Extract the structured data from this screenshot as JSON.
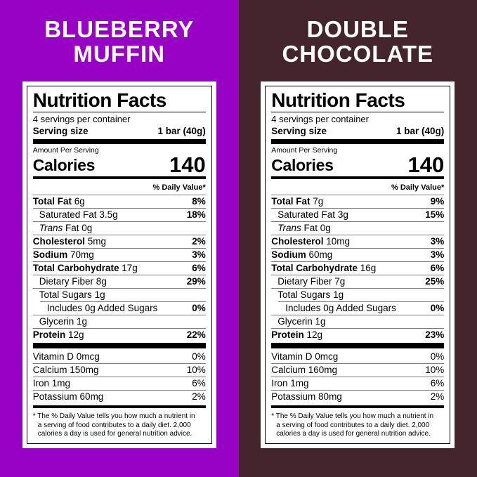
{
  "panels": [
    {
      "bg": "#9702C5",
      "flavor": {
        "line1": "BLUEBERRY",
        "line2": "MUFFIN"
      },
      "label": {
        "title": "Nutrition Facts",
        "servings_per_container": "4 servings per container",
        "serving_size": {
          "label": "Serving size",
          "value": "1 bar (40g)"
        },
        "amount_per_serving": "Amount Per Serving",
        "calories": {
          "label": "Calories",
          "value": "140"
        },
        "daily_value_header": "% Daily Value*",
        "rows": [
          {
            "name": "Total Fat",
            "amount": "6g",
            "dv": "8%"
          },
          {
            "name": "Saturated Fat",
            "amount": "3.5g",
            "dv": "18%"
          },
          {
            "name": "Trans",
            "amount": "Fat 0g",
            "dv": ""
          },
          {
            "name": "Cholesterol",
            "amount": "5mg",
            "dv": "2%"
          },
          {
            "name": "Sodium",
            "amount": "70mg",
            "dv": "3%"
          },
          {
            "name": "Total Carbohydrate",
            "amount": "17g",
            "dv": "6%"
          },
          {
            "name": "Dietary Fiber",
            "amount": "8g",
            "dv": "29%"
          },
          {
            "name": "Total Sugars",
            "amount": "1g",
            "dv": ""
          },
          {
            "name": "Includes 0g Added Sugars",
            "amount": "",
            "dv": "0%"
          },
          {
            "name": "Glycerin",
            "amount": "1g",
            "dv": ""
          },
          {
            "name": "Protein",
            "amount": "12g",
            "dv": "22%"
          }
        ],
        "vitamins": [
          {
            "name": "Vitamin D",
            "amount": "0mcg",
            "dv": "0%"
          },
          {
            "name": "Calcium",
            "amount": "150mg",
            "dv": "10%"
          },
          {
            "name": "Iron",
            "amount": "1mg",
            "dv": "6%"
          },
          {
            "name": "Potassium",
            "amount": "60mg",
            "dv": "2%"
          }
        ],
        "footnote_lines": [
          "* The % Daily Value tells you how much a nutrient in",
          "a serving of food contributes to a daily diet. 2,000",
          "calories a day is used for general nutrition advice."
        ]
      }
    },
    {
      "bg": "#44252B",
      "flavor": {
        "line1": "DOUBLE",
        "line2": "CHOCOLATE"
      },
      "label": {
        "title": "Nutrition Facts",
        "servings_per_container": "4 servings per container",
        "serving_size": {
          "label": "Serving size",
          "value": "1 bar (40g)"
        },
        "amount_per_serving": "Amount Per Serving",
        "calories": {
          "label": "Calories",
          "value": "140"
        },
        "daily_value_header": "% Daily Value*",
        "rows": [
          {
            "name": "Total Fat",
            "amount": "7g",
            "dv": "9%"
          },
          {
            "name": "Saturated Fat",
            "amount": "3g",
            "dv": "15%"
          },
          {
            "name": "Trans",
            "amount": "Fat 0g",
            "dv": ""
          },
          {
            "name": "Cholesterol",
            "amount": "10mg",
            "dv": "3%"
          },
          {
            "name": "Sodium",
            "amount": "60mg",
            "dv": "3%"
          },
          {
            "name": "Total Carbohydrate",
            "amount": "16g",
            "dv": "6%"
          },
          {
            "name": "Dietary Fiber",
            "amount": "7g",
            "dv": "25%"
          },
          {
            "name": "Total Sugars",
            "amount": "1g",
            "dv": ""
          },
          {
            "name": "Includes 0g Added Sugars",
            "amount": "",
            "dv": "0%"
          },
          {
            "name": "Glycerin",
            "amount": "1g",
            "dv": ""
          },
          {
            "name": "Protein",
            "amount": "12g",
            "dv": "23%"
          }
        ],
        "vitamins": [
          {
            "name": "Vitamin D",
            "amount": "0mcg",
            "dv": "0%"
          },
          {
            "name": "Calcium",
            "amount": "160mg",
            "dv": "10%"
          },
          {
            "name": "Iron",
            "amount": "1mg",
            "dv": "6%"
          },
          {
            "name": "Potassium",
            "amount": "80mg",
            "dv": "2%"
          }
        ],
        "footnote_lines": [
          "* The % Daily Value tells you how much a nutrient in",
          "a serving of food contributes to a daily diet. 2,000",
          "calories a day is used for general nutrition advice."
        ]
      }
    }
  ]
}
